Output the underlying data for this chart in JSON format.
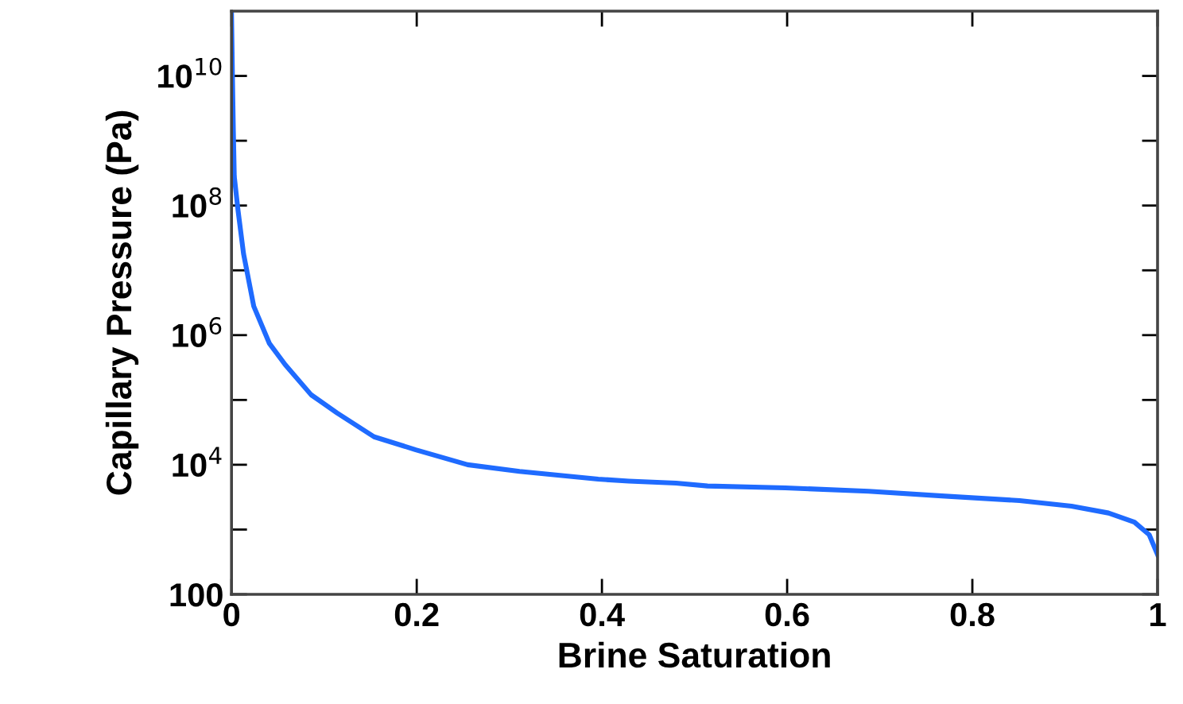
{
  "chart_data": {
    "type": "line",
    "xlabel": "Brine Saturation",
    "ylabel": "Capillary Pressure (Pa)",
    "log": "y",
    "x": [
      0.0,
      0.001,
      0.002,
      0.003,
      0.007,
      0.013,
      0.024,
      0.041,
      0.058,
      0.086,
      0.114,
      0.154,
      0.199,
      0.255,
      0.311,
      0.396,
      0.429,
      0.48,
      0.514,
      0.598,
      0.688,
      0.767,
      0.851,
      0.907,
      0.947,
      0.975,
      0.991,
      1.0
    ],
    "series": [
      {
        "color": "#1f6bff",
        "values": [
          90000000000.0,
          10000000000.0,
          1400000000.0,
          280000000.0,
          85000000.0,
          18000000.0,
          2800000.0,
          740000.0,
          350000.0,
          120000.0,
          63000.0,
          27000.0,
          17000.0,
          10000.0,
          7900,
          6000,
          5600,
          5200,
          4700,
          4400,
          3900,
          3300,
          2800,
          2300,
          1800,
          1300,
          830,
          410
        ]
      }
    ],
    "xlim": [
      0,
      1
    ],
    "xticks": [
      0,
      0.2,
      0.4,
      0.6,
      0.8,
      1
    ],
    "ylim": [
      100,
      100000000000.0
    ],
    "yticks": [
      100,
      {
        "value": 1000,
        "label": null
      },
      {
        "value": 10000,
        "label": "10$^{4}$"
      },
      {
        "value": 100000,
        "label": null
      },
      {
        "value": 1000000,
        "label": "10$^{6}$"
      },
      {
        "value": 10000000,
        "label": null
      },
      {
        "value": 100000000,
        "label": "10$^{8}$"
      },
      {
        "value": 1000000000,
        "label": null
      },
      {
        "value": 10000000000,
        "label": "10$^{10}$"
      }
    ],
    "grid": false,
    "legend": false,
    "marker": "none",
    "line_style": "solid"
  }
}
